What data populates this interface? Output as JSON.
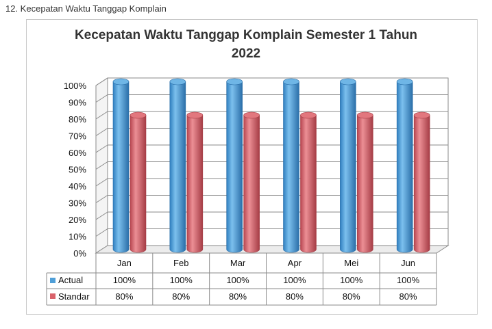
{
  "heading": "12. Kecepatan Waktu Tanggap Komplain",
  "chart_data": {
    "type": "bar",
    "title_lines": [
      "Kecepatan Waktu Tanggap Komplain Semester 1 Tahun",
      "2022"
    ],
    "categories": [
      "Jan",
      "Feb",
      "Mar",
      "Apr",
      "Mei",
      "Jun"
    ],
    "series": [
      {
        "name": "Actual",
        "values": [
          100,
          100,
          100,
          100,
          100,
          100
        ],
        "labels": [
          "100%",
          "100%",
          "100%",
          "100%",
          "100%",
          "100%"
        ],
        "color": "#4f9fd8"
      },
      {
        "name": "Standar",
        "values": [
          80,
          80,
          80,
          80,
          80,
          80
        ],
        "labels": [
          "80%",
          "80%",
          "80%",
          "80%",
          "80%",
          "80%"
        ],
        "color": "#d9626a"
      }
    ],
    "y_ticks": [
      "0%",
      "10%",
      "20%",
      "30%",
      "40%",
      "50%",
      "60%",
      "70%",
      "80%",
      "90%",
      "100%"
    ],
    "ylim": [
      0,
      100
    ],
    "grid": true,
    "three_d": true,
    "data_table": true
  }
}
